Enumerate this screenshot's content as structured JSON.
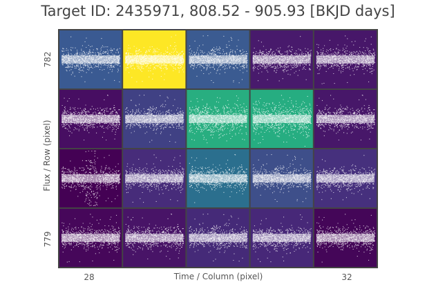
{
  "chart_data": {
    "type": "scatter",
    "title": "Target ID: 2435971, 808.52 - 905.93 [BKJD days]",
    "xlabel": "Time / Column (pixel)",
    "ylabel": "Flux / Row (pixel)",
    "x_ticks": [
      "28",
      "32"
    ],
    "y_ticks": [
      "782",
      "779"
    ],
    "grid": "4 rows x 5 columns of pixel light-curve panels",
    "panel_colors": [
      [
        "#3a5a92",
        "#fde725",
        "#3b5b91",
        "#481a6c",
        "#471769"
      ],
      [
        "#470e62",
        "#404184",
        "#28ae80",
        "#26ad81",
        "#471769"
      ],
      [
        "#440154",
        "#472c7a",
        "#2b6f8e",
        "#3e4f8a",
        "#46307d"
      ],
      [
        "#46075a",
        "#481467",
        "#452a78",
        "#472878",
        "#440658"
      ]
    ],
    "marker_color": "#ffffff"
  }
}
